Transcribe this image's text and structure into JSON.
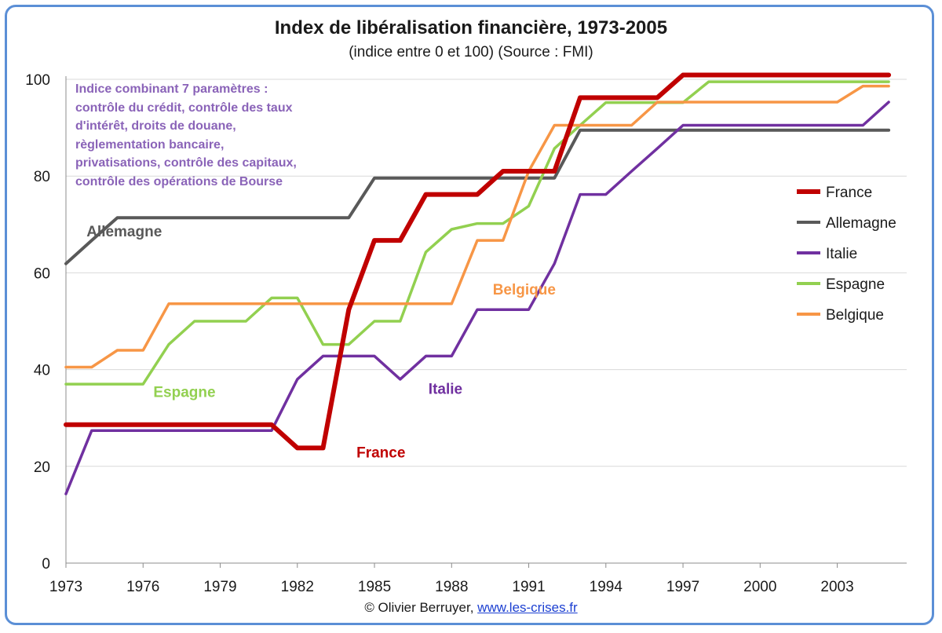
{
  "chart_data": {
    "type": "line",
    "title": "Index de libéralisation financière, 1973-2005",
    "subtitle": "(indice entre 0 et 100) (Source : FMI)",
    "note": "Indice combinant  7 paramètres  :\ncontrôle du crédit, contrôle des taux\nd'intérêt, droits de douane,\nrèglementation bancaire,\nprivatisations,  contrôle des capitaux,\ncontrôle des opérations de Bourse",
    "xlim": [
      1973,
      2005.7
    ],
    "ylim": [
      0,
      100
    ],
    "x_ticks": [
      "1973",
      "1976",
      "1979",
      "1982",
      "1985",
      "1988",
      "1991",
      "1994",
      "1997",
      "2000",
      "2003"
    ],
    "y_ticks": [
      "0",
      "20",
      "40",
      "60",
      "80",
      "100"
    ],
    "grid": "horizontal",
    "legend_position": "right",
    "x": [
      1973,
      1974,
      1975,
      1976,
      1977,
      1978,
      1979,
      1980,
      1981,
      1982,
      1983,
      1984,
      1985,
      1986,
      1987,
      1988,
      1989,
      1990,
      1991,
      1992,
      1993,
      1994,
      1995,
      1996,
      1997,
      1998,
      1999,
      2000,
      2001,
      2002,
      2003,
      2004,
      2005
    ],
    "series": [
      {
        "name": "France",
        "color": "#c00000",
        "width": 6,
        "label": "France",
        "values": [
          28.6,
          28.6,
          28.6,
          28.6,
          28.6,
          28.6,
          28.6,
          28.6,
          28.6,
          23.8,
          23.8,
          52.4,
          66.7,
          66.7,
          76.2,
          76.2,
          76.2,
          81.0,
          81.0,
          81.0,
          96.2,
          96.2,
          96.2,
          96.2,
          100.9,
          100.9,
          100.9,
          100.9,
          100.9,
          100.9,
          100.9,
          100.9,
          100.9
        ]
      },
      {
        "name": "Allemagne",
        "color": "#595959",
        "width": 4,
        "label": "Allemagne",
        "values": [
          61.9,
          66.7,
          71.4,
          71.4,
          71.4,
          71.4,
          71.4,
          71.4,
          71.4,
          71.4,
          71.4,
          71.4,
          79.6,
          79.6,
          79.6,
          79.6,
          79.6,
          79.6,
          79.6,
          79.6,
          89.5,
          89.5,
          89.5,
          89.5,
          89.5,
          89.5,
          89.5,
          89.5,
          89.5,
          89.5,
          89.5,
          89.5,
          89.5
        ]
      },
      {
        "name": "Italie",
        "color": "#7030a0",
        "width": 3.5,
        "label": "Italie",
        "values": [
          14.3,
          27.4,
          27.4,
          27.4,
          27.4,
          27.4,
          27.4,
          27.4,
          27.4,
          38.0,
          42.8,
          42.8,
          42.8,
          38.0,
          42.8,
          42.8,
          52.4,
          52.4,
          52.4,
          61.9,
          76.2,
          76.2,
          81.0,
          85.7,
          90.5,
          90.5,
          90.5,
          90.5,
          90.5,
          90.5,
          90.5,
          90.5,
          95.3
        ]
      },
      {
        "name": "Espagne",
        "color": "#92d050",
        "width": 3.5,
        "label": "Espagne",
        "values": [
          37.0,
          37.0,
          37.0,
          37.0,
          45.2,
          50.0,
          50.0,
          50.0,
          54.8,
          54.8,
          45.2,
          45.2,
          50.0,
          50.0,
          64.3,
          69.0,
          70.2,
          70.2,
          73.8,
          85.7,
          90.5,
          95.2,
          95.2,
          95.2,
          95.2,
          99.5,
          99.5,
          99.5,
          99.5,
          99.5,
          99.5,
          99.5,
          99.5
        ]
      },
      {
        "name": "Belgique",
        "color": "#f79646",
        "width": 3.5,
        "label": "Belgique",
        "values": [
          40.5,
          40.5,
          44.0,
          44.0,
          53.6,
          53.6,
          53.6,
          53.6,
          53.6,
          53.6,
          53.6,
          53.6,
          53.6,
          53.6,
          53.6,
          53.6,
          66.7,
          66.7,
          81.0,
          90.5,
          90.5,
          90.5,
          90.5,
          95.3,
          95.3,
          95.3,
          95.3,
          95.3,
          95.3,
          95.3,
          95.3,
          98.6,
          98.6
        ]
      }
    ]
  },
  "credit": {
    "prefix": "© Olivier Berruyer,",
    "link": "www.les-crises.fr"
  }
}
